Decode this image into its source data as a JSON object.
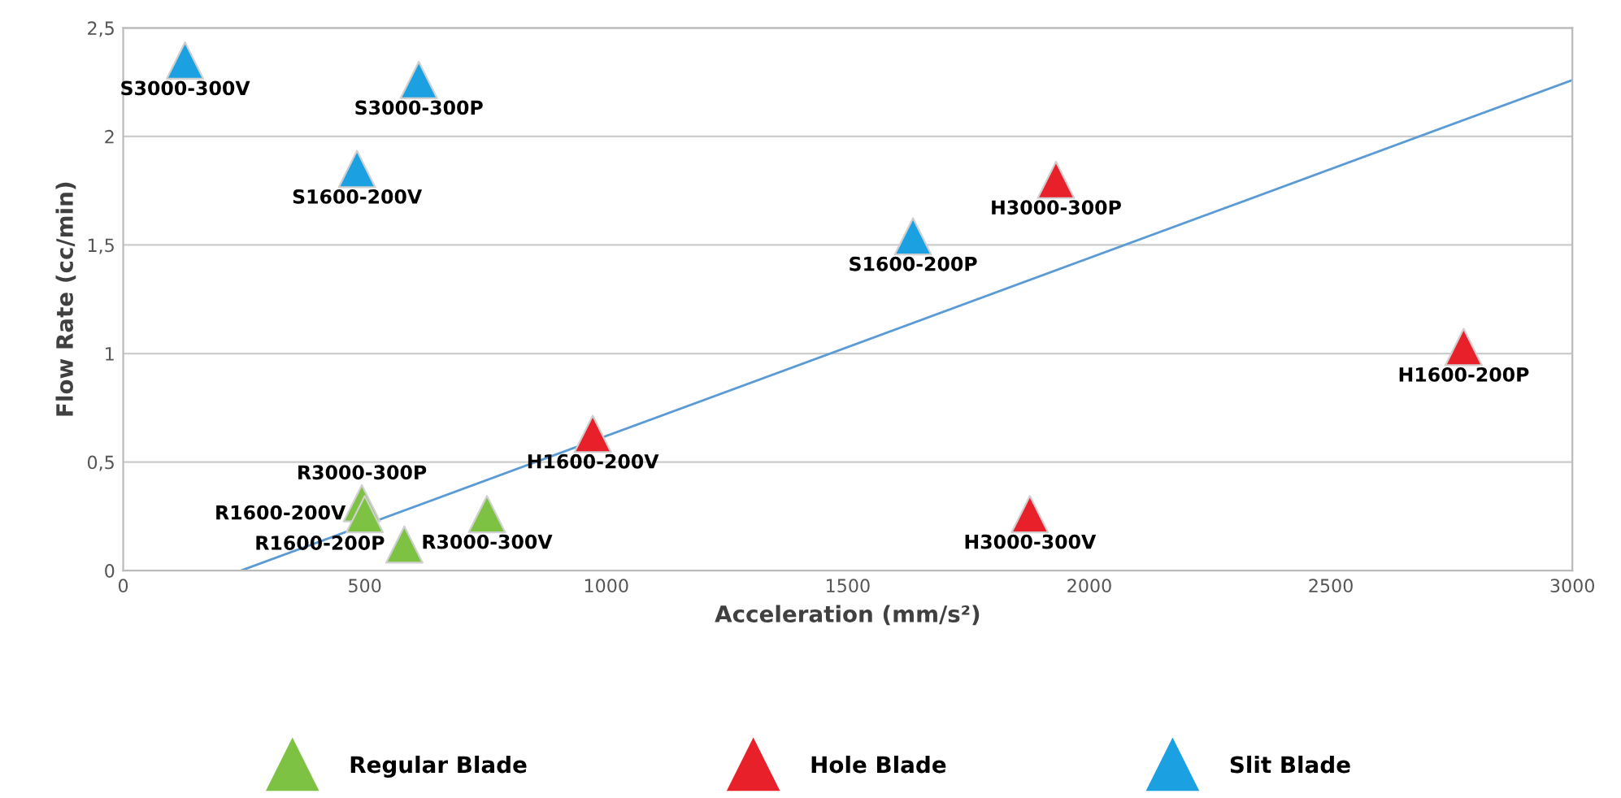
{
  "chart_data": {
    "type": "scatter",
    "xlabel": "Acceleration (mm/s²)",
    "ylabel": "Flow Rate (cc/min)",
    "xlim": [
      0,
      3000
    ],
    "xticks": [
      0,
      500,
      1000,
      1500,
      2000,
      2500,
      3000
    ],
    "ylim": [
      0,
      2.5
    ],
    "yticks": [
      0,
      {
        "value": 0.5,
        "label": "0,5"
      },
      1,
      {
        "value": 1.5,
        "label": "1,5"
      },
      2,
      {
        "value": 2.5,
        "label": "2,5"
      }
    ],
    "grid": "y",
    "legend": "bottom",
    "series": [
      {
        "name": "Regular Blade",
        "color": "#7dc242",
        "marker": "triangle",
        "x": [
          494,
          500,
          582,
          753
        ],
        "values": [
          0.31,
          0.26,
          0.12,
          0.26
        ]
      },
      {
        "name": "Hole Blade",
        "color": "#e8202a",
        "marker": "triangle",
        "x": [
          1931,
          2775,
          972,
          1877
        ],
        "values": [
          1.8,
          1.03,
          0.63,
          0.26
        ]
      },
      {
        "name": "Slit Blade",
        "color": "#1ba1e2",
        "marker": "triangle",
        "x": [
          128,
          612,
          484,
          1635
        ],
        "values": [
          2.35,
          2.26,
          1.85,
          1.54
        ]
      },
      {
        "type": "line",
        "color": "#5b9bd5",
        "x": [
          244,
          3000
        ],
        "values": [
          0,
          2.26
        ]
      }
    ],
    "annotations": [
      {
        "text": "S3000-300V",
        "x": 128,
        "y": 2.35
      },
      {
        "text": "S3000-300P",
        "x": 612,
        "y": 2.26
      },
      {
        "text": "S1600-200V",
        "x": 484,
        "y": 1.85
      },
      {
        "text": "S1600-200P",
        "x": 1635,
        "y": 1.54
      },
      {
        "text": "H3000-300P",
        "x": 1931,
        "y": 1.8
      },
      {
        "text": "H1600-200P",
        "x": 2775,
        "y": 1.03
      },
      {
        "text": "H1600-200V",
        "x": 972,
        "y": 0.63
      },
      {
        "text": "H3000-300V",
        "x": 1877,
        "y": 0.26
      },
      {
        "text": "R3000-300P",
        "x": 494,
        "y": 0.31
      },
      {
        "text": "R1600-200V",
        "x": 500,
        "y": 0.26
      },
      {
        "text": "R3000-300V",
        "x": 753,
        "y": 0.26
      },
      {
        "text": "R1600-200P",
        "x": 582,
        "y": 0.12
      }
    ]
  }
}
